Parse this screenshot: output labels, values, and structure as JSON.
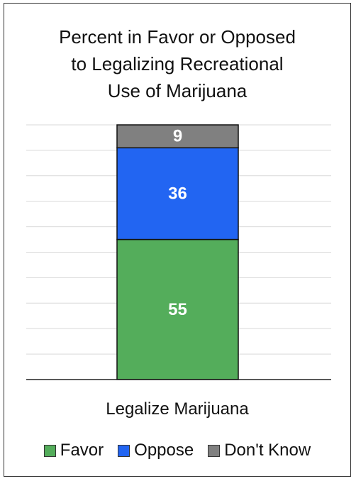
{
  "chart_data": {
    "type": "bar",
    "stacked": true,
    "title": "Percent in Favor or Opposed\nto Legalizing Recreational\nUse of Marijuana",
    "categories": [
      "Legalize Marijuana"
    ],
    "series": [
      {
        "name": "Favor",
        "values": [
          55
        ],
        "color": "#54ad5b"
      },
      {
        "name": "Oppose",
        "values": [
          36
        ],
        "color": "#2265f2"
      },
      {
        "name": "Don't Know",
        "values": [
          9
        ],
        "color": "#808080"
      }
    ],
    "ylim": [
      0,
      100
    ],
    "grid": true,
    "legend_position": "bottom",
    "data_labels": true
  }
}
